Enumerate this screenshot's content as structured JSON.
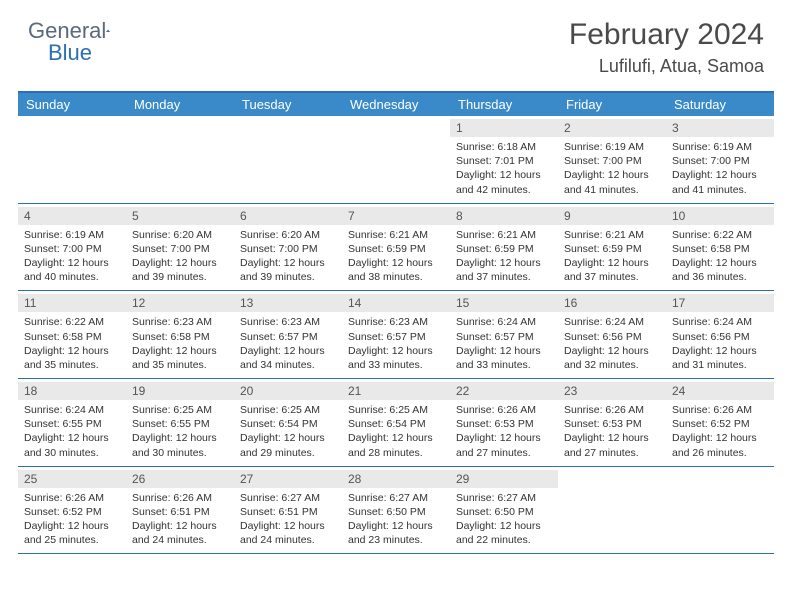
{
  "logo": {
    "text_gray": "General",
    "text_blue": "Blue"
  },
  "title": {
    "month": "February 2024",
    "location": "Lufilufi, Atua, Samoa"
  },
  "day_headers": [
    "Sunday",
    "Monday",
    "Tuesday",
    "Wednesday",
    "Thursday",
    "Friday",
    "Saturday"
  ],
  "colors": {
    "header_bg": "#3a8ac9",
    "border": "#2c6fb5",
    "num_bg": "#e9e9e9",
    "text": "#333333"
  },
  "weeks": [
    [
      {
        "n": "",
        "sr": "",
        "ss": "",
        "dl": ""
      },
      {
        "n": "",
        "sr": "",
        "ss": "",
        "dl": ""
      },
      {
        "n": "",
        "sr": "",
        "ss": "",
        "dl": ""
      },
      {
        "n": "",
        "sr": "",
        "ss": "",
        "dl": ""
      },
      {
        "n": "1",
        "sr": "Sunrise: 6:18 AM",
        "ss": "Sunset: 7:01 PM",
        "dl": "Daylight: 12 hours and 42 minutes."
      },
      {
        "n": "2",
        "sr": "Sunrise: 6:19 AM",
        "ss": "Sunset: 7:00 PM",
        "dl": "Daylight: 12 hours and 41 minutes."
      },
      {
        "n": "3",
        "sr": "Sunrise: 6:19 AM",
        "ss": "Sunset: 7:00 PM",
        "dl": "Daylight: 12 hours and 41 minutes."
      }
    ],
    [
      {
        "n": "4",
        "sr": "Sunrise: 6:19 AM",
        "ss": "Sunset: 7:00 PM",
        "dl": "Daylight: 12 hours and 40 minutes."
      },
      {
        "n": "5",
        "sr": "Sunrise: 6:20 AM",
        "ss": "Sunset: 7:00 PM",
        "dl": "Daylight: 12 hours and 39 minutes."
      },
      {
        "n": "6",
        "sr": "Sunrise: 6:20 AM",
        "ss": "Sunset: 7:00 PM",
        "dl": "Daylight: 12 hours and 39 minutes."
      },
      {
        "n": "7",
        "sr": "Sunrise: 6:21 AM",
        "ss": "Sunset: 6:59 PM",
        "dl": "Daylight: 12 hours and 38 minutes."
      },
      {
        "n": "8",
        "sr": "Sunrise: 6:21 AM",
        "ss": "Sunset: 6:59 PM",
        "dl": "Daylight: 12 hours and 37 minutes."
      },
      {
        "n": "9",
        "sr": "Sunrise: 6:21 AM",
        "ss": "Sunset: 6:59 PM",
        "dl": "Daylight: 12 hours and 37 minutes."
      },
      {
        "n": "10",
        "sr": "Sunrise: 6:22 AM",
        "ss": "Sunset: 6:58 PM",
        "dl": "Daylight: 12 hours and 36 minutes."
      }
    ],
    [
      {
        "n": "11",
        "sr": "Sunrise: 6:22 AM",
        "ss": "Sunset: 6:58 PM",
        "dl": "Daylight: 12 hours and 35 minutes."
      },
      {
        "n": "12",
        "sr": "Sunrise: 6:23 AM",
        "ss": "Sunset: 6:58 PM",
        "dl": "Daylight: 12 hours and 35 minutes."
      },
      {
        "n": "13",
        "sr": "Sunrise: 6:23 AM",
        "ss": "Sunset: 6:57 PM",
        "dl": "Daylight: 12 hours and 34 minutes."
      },
      {
        "n": "14",
        "sr": "Sunrise: 6:23 AM",
        "ss": "Sunset: 6:57 PM",
        "dl": "Daylight: 12 hours and 33 minutes."
      },
      {
        "n": "15",
        "sr": "Sunrise: 6:24 AM",
        "ss": "Sunset: 6:57 PM",
        "dl": "Daylight: 12 hours and 33 minutes."
      },
      {
        "n": "16",
        "sr": "Sunrise: 6:24 AM",
        "ss": "Sunset: 6:56 PM",
        "dl": "Daylight: 12 hours and 32 minutes."
      },
      {
        "n": "17",
        "sr": "Sunrise: 6:24 AM",
        "ss": "Sunset: 6:56 PM",
        "dl": "Daylight: 12 hours and 31 minutes."
      }
    ],
    [
      {
        "n": "18",
        "sr": "Sunrise: 6:24 AM",
        "ss": "Sunset: 6:55 PM",
        "dl": "Daylight: 12 hours and 30 minutes."
      },
      {
        "n": "19",
        "sr": "Sunrise: 6:25 AM",
        "ss": "Sunset: 6:55 PM",
        "dl": "Daylight: 12 hours and 30 minutes."
      },
      {
        "n": "20",
        "sr": "Sunrise: 6:25 AM",
        "ss": "Sunset: 6:54 PM",
        "dl": "Daylight: 12 hours and 29 minutes."
      },
      {
        "n": "21",
        "sr": "Sunrise: 6:25 AM",
        "ss": "Sunset: 6:54 PM",
        "dl": "Daylight: 12 hours and 28 minutes."
      },
      {
        "n": "22",
        "sr": "Sunrise: 6:26 AM",
        "ss": "Sunset: 6:53 PM",
        "dl": "Daylight: 12 hours and 27 minutes."
      },
      {
        "n": "23",
        "sr": "Sunrise: 6:26 AM",
        "ss": "Sunset: 6:53 PM",
        "dl": "Daylight: 12 hours and 27 minutes."
      },
      {
        "n": "24",
        "sr": "Sunrise: 6:26 AM",
        "ss": "Sunset: 6:52 PM",
        "dl": "Daylight: 12 hours and 26 minutes."
      }
    ],
    [
      {
        "n": "25",
        "sr": "Sunrise: 6:26 AM",
        "ss": "Sunset: 6:52 PM",
        "dl": "Daylight: 12 hours and 25 minutes."
      },
      {
        "n": "26",
        "sr": "Sunrise: 6:26 AM",
        "ss": "Sunset: 6:51 PM",
        "dl": "Daylight: 12 hours and 24 minutes."
      },
      {
        "n": "27",
        "sr": "Sunrise: 6:27 AM",
        "ss": "Sunset: 6:51 PM",
        "dl": "Daylight: 12 hours and 24 minutes."
      },
      {
        "n": "28",
        "sr": "Sunrise: 6:27 AM",
        "ss": "Sunset: 6:50 PM",
        "dl": "Daylight: 12 hours and 23 minutes."
      },
      {
        "n": "29",
        "sr": "Sunrise: 6:27 AM",
        "ss": "Sunset: 6:50 PM",
        "dl": "Daylight: 12 hours and 22 minutes."
      },
      {
        "n": "",
        "sr": "",
        "ss": "",
        "dl": ""
      },
      {
        "n": "",
        "sr": "",
        "ss": "",
        "dl": ""
      }
    ]
  ]
}
